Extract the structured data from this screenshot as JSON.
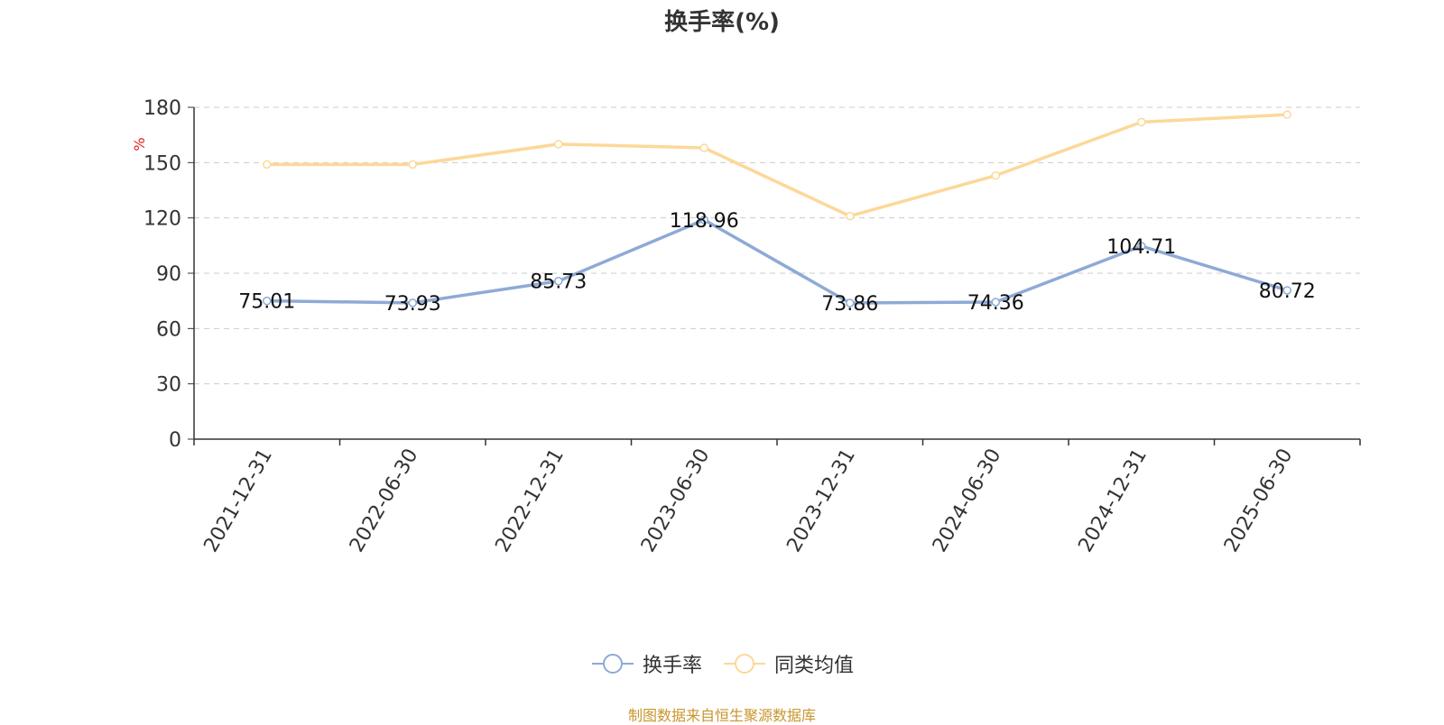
{
  "title": "换手率(%)",
  "source_note": "制图数据来自恒生聚源数据库",
  "colors": {
    "series1": "#8eaad6",
    "series2": "#fcd899",
    "axis": "#333333",
    "grid": "#cccccc",
    "unit": "#e02020"
  },
  "chart_data": {
    "type": "line",
    "title": "换手率(%)",
    "ylabel": "%",
    "ylim": [
      0,
      180
    ],
    "yticks": [
      "0",
      "30",
      "60",
      "90",
      "120",
      "150",
      "180"
    ],
    "grid": "horizontal-dashed",
    "legend_position": "bottom-center",
    "categories": [
      "2021-12-31",
      "2022-06-30",
      "2022-12-31",
      "2023-06-30",
      "2023-12-31",
      "2024-06-30",
      "2024-12-31",
      "2025-06-30"
    ],
    "series": [
      {
        "name": "换手率",
        "values": [
          75.01,
          73.93,
          85.73,
          118.96,
          73.86,
          74.36,
          104.71,
          80.72
        ],
        "labels": [
          "75.01",
          "73.93",
          "85.73",
          "118.96",
          "73.86",
          "74.36",
          "104.71",
          "80.72"
        ]
      },
      {
        "name": "同类均值",
        "values": [
          149,
          149,
          160,
          158,
          121,
          143,
          172,
          176
        ]
      }
    ]
  }
}
